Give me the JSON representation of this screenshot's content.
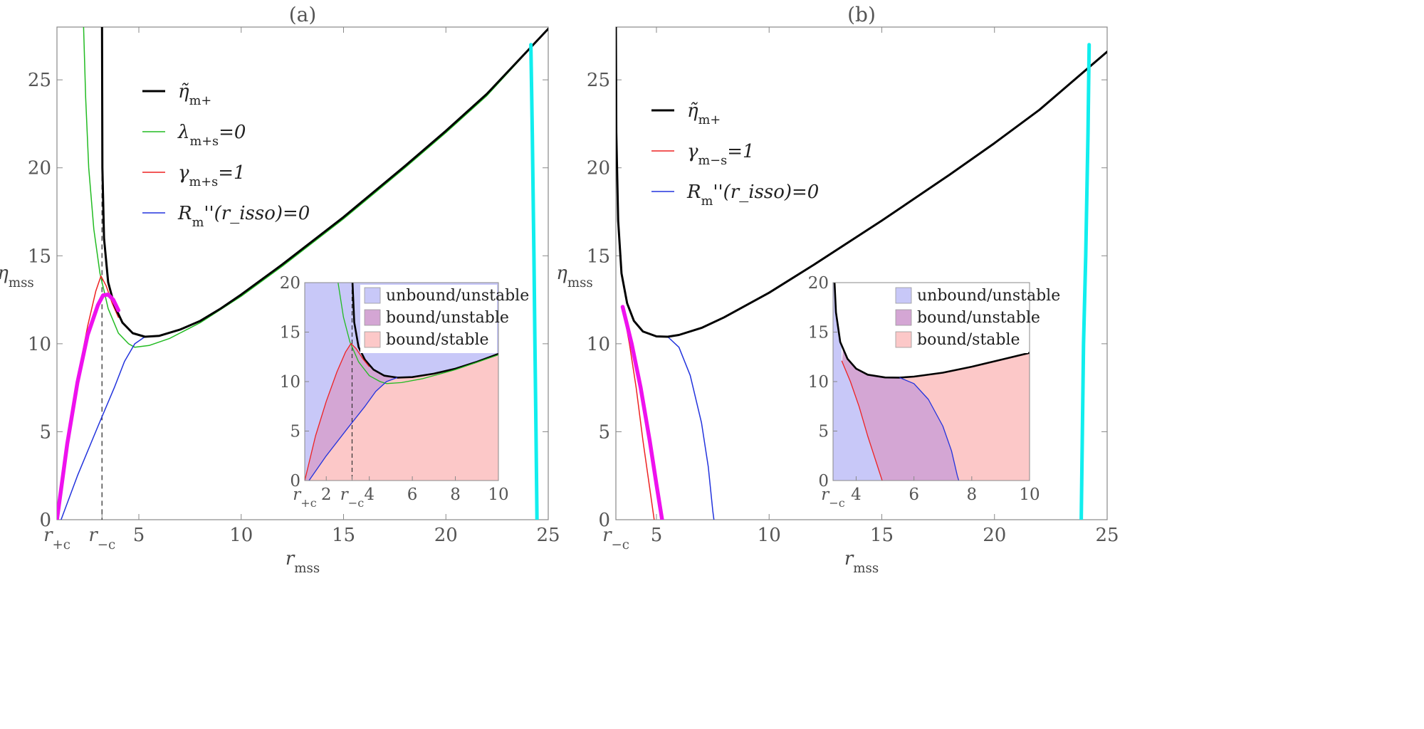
{
  "chart_data": [
    {
      "panel": "(a)",
      "type": "line",
      "title": "(a)",
      "xlabel": "r_mss",
      "ylabel": "η_mss",
      "xlim": [
        1.0,
        25.0
      ],
      "ylim": [
        0,
        28
      ],
      "xticks": [
        {
          "v": 1.0,
          "t": "r",
          "sub": "+c"
        },
        {
          "v": 3.2,
          "t": "r",
          "sub": "−c"
        },
        {
          "v": 5,
          "t": "5"
        },
        {
          "v": 10,
          "t": "10"
        },
        {
          "v": 15,
          "t": "15"
        },
        {
          "v": 20,
          "t": "20"
        },
        {
          "v": 25,
          "t": "25"
        }
      ],
      "yticks": [
        0,
        5,
        10,
        15,
        20,
        25
      ],
      "vline_x": 3.2,
      "legend": [
        {
          "key": "eta_tilde",
          "label": "η̃",
          "sub": "m+",
          "suffix": "",
          "color": "#000000"
        },
        {
          "key": "lambda",
          "label": "λ",
          "sub": "m+s",
          "suffix": "=0",
          "color": "#22bb22"
        },
        {
          "key": "gamma",
          "label": "γ",
          "sub": "m+s",
          "suffix": "=1",
          "color": "#ee2222"
        },
        {
          "key": "risso",
          "label": "R",
          "sub": "m",
          "suffix": "''(r_isso)=0",
          "color": "#2233dd"
        }
      ],
      "series": [
        {
          "name": "η̃_m+",
          "color": "#000000",
          "width": 3,
          "points": [
            [
              3.2,
              28
            ],
            [
              3.22,
              20
            ],
            [
              3.3,
              16
            ],
            [
              3.5,
              13.5
            ],
            [
              3.8,
              12.2
            ],
            [
              4.2,
              11.2
            ],
            [
              4.7,
              10.6
            ],
            [
              5.3,
              10.4
            ],
            [
              6,
              10.45
            ],
            [
              7,
              10.8
            ],
            [
              8,
              11.3
            ],
            [
              9,
              12
            ],
            [
              10,
              12.8
            ],
            [
              12,
              14.5
            ],
            [
              15,
              17.2
            ],
            [
              18,
              20.1
            ],
            [
              20,
              22.1
            ],
            [
              22,
              24.2
            ],
            [
              25,
              27.9
            ]
          ]
        },
        {
          "name": "λ_m+s=0",
          "color": "#22bb22",
          "width": 1.5,
          "points": [
            [
              2.3,
              28
            ],
            [
              2.4,
              24
            ],
            [
              2.55,
              20
            ],
            [
              2.8,
              16.5
            ],
            [
              3.1,
              14
            ],
            [
              3.5,
              12
            ],
            [
              4,
              10.6
            ],
            [
              4.5,
              10
            ],
            [
              4.8,
              9.8
            ],
            [
              5.5,
              9.9
            ],
            [
              6.5,
              10.3
            ],
            [
              8,
              11.2
            ],
            [
              10,
              12.7
            ],
            [
              12,
              14.4
            ],
            [
              15,
              17.1
            ],
            [
              18,
              20
            ],
            [
              20,
              22
            ],
            [
              22,
              24.1
            ],
            [
              25,
              27.9
            ]
          ]
        },
        {
          "name": "γ_m+s=1",
          "color": "#ee2222",
          "width": 1.5,
          "points": [
            [
              1.0,
              0
            ],
            [
              1.5,
              4.5
            ],
            [
              2,
              8
            ],
            [
              2.5,
              11
            ],
            [
              2.9,
              13
            ],
            [
              3.15,
              13.85
            ],
            [
              3.4,
              13.3
            ],
            [
              3.7,
              12.3
            ],
            [
              4,
              11.5
            ]
          ]
        },
        {
          "name": "R_m''(r_isso)=0",
          "color": "#2233dd",
          "width": 1.5,
          "points": [
            [
              1.2,
              0
            ],
            [
              2,
              2.5
            ],
            [
              3,
              5.3
            ],
            [
              3.8,
              7.5
            ],
            [
              4.3,
              9
            ],
            [
              4.8,
              10
            ],
            [
              5.3,
              10.4
            ]
          ]
        },
        {
          "name": "magenta",
          "color": "#ee11ee",
          "width": 5.5,
          "points": [
            [
              1.0,
              0
            ],
            [
              1.5,
              4.3
            ],
            [
              2,
              7.8
            ],
            [
              2.5,
              10.5
            ],
            [
              3,
              12.2
            ],
            [
              3.25,
              12.75
            ],
            [
              3.5,
              12.8
            ],
            [
              3.75,
              12.5
            ],
            [
              4,
              11.9
            ]
          ]
        },
        {
          "name": "cyan",
          "color": "#11eeee",
          "width": 5,
          "points": [
            [
              24.15,
              27
            ],
            [
              24.22,
              22
            ],
            [
              24.3,
              15
            ],
            [
              24.35,
              10
            ],
            [
              24.4,
              5
            ],
            [
              24.45,
              0
            ]
          ]
        }
      ],
      "inset": {
        "xlim": [
          1.0,
          10.0
        ],
        "ylim": [
          0,
          20
        ],
        "xticks": [
          {
            "v": 1.0,
            "t": "r",
            "sub": "+c"
          },
          {
            "v": 2,
            "t": "2"
          },
          {
            "v": 3.2,
            "t": "r",
            "sub": "−c"
          },
          {
            "v": 4,
            "t": "4"
          },
          {
            "v": 6,
            "t": "6"
          },
          {
            "v": 8,
            "t": "8"
          },
          {
            "v": 10,
            "t": "10"
          }
        ],
        "yticks": [
          0,
          5,
          10,
          15,
          20
        ],
        "vline_x": 3.2,
        "regions": [
          {
            "label": "unbound/unstable",
            "color": "#c8c8f8"
          },
          {
            "label": "bound/unstable",
            "color": "#d4a6d4"
          },
          {
            "label": "bound/stable",
            "color": "#fcc8c8"
          }
        ]
      }
    },
    {
      "panel": "(b)",
      "type": "line",
      "title": "(b)",
      "xlabel": "r_mss",
      "ylabel": "η_mss",
      "xlim": [
        3.2,
        25.0
      ],
      "ylim": [
        0,
        28
      ],
      "xticks": [
        {
          "v": 3.2,
          "t": "r",
          "sub": "−c"
        },
        {
          "v": 5,
          "t": "5"
        },
        {
          "v": 10,
          "t": "10"
        },
        {
          "v": 15,
          "t": "15"
        },
        {
          "v": 20,
          "t": "20"
        },
        {
          "v": 25,
          "t": "25"
        }
      ],
      "yticks": [
        0,
        5,
        10,
        15,
        20,
        25
      ],
      "legend": [
        {
          "key": "eta_tilde",
          "label": "η̃",
          "sub": "m+",
          "suffix": "",
          "color": "#000000"
        },
        {
          "key": "gamma",
          "label": "γ",
          "sub": "m−s",
          "suffix": "=1",
          "color": "#ee2222"
        },
        {
          "key": "risso",
          "label": "R",
          "sub": "m",
          "suffix": "''(r_isso)=0",
          "color": "#2233dd"
        }
      ],
      "series": [
        {
          "name": "η̃_m+",
          "color": "#000000",
          "width": 3,
          "points": [
            [
              3.2,
              28
            ],
            [
              3.22,
              22
            ],
            [
              3.3,
              17
            ],
            [
              3.45,
              14
            ],
            [
              3.7,
              12.3
            ],
            [
              4,
              11.3
            ],
            [
              4.4,
              10.7
            ],
            [
              5,
              10.42
            ],
            [
              5.5,
              10.4
            ],
            [
              6,
              10.5
            ],
            [
              7,
              10.9
            ],
            [
              8,
              11.5
            ],
            [
              10,
              12.9
            ],
            [
              12,
              14.5
            ],
            [
              15,
              17
            ],
            [
              18,
              19.6
            ],
            [
              20,
              21.4
            ],
            [
              22,
              23.3
            ],
            [
              25,
              26.6
            ]
          ]
        },
        {
          "name": "γ_m−s=1",
          "color": "#ee2222",
          "width": 1.5,
          "points": [
            [
              3.5,
              12.1
            ],
            [
              3.8,
              10
            ],
            [
              4.1,
              7.5
            ],
            [
              4.4,
              4.5
            ],
            [
              4.7,
              1.8
            ],
            [
              4.9,
              0
            ]
          ]
        },
        {
          "name": "R_m''(r_isso)=0",
          "color": "#2233dd",
          "width": 1.5,
          "points": [
            [
              5.5,
              10.4
            ],
            [
              6,
              9.8
            ],
            [
              6.5,
              8.2
            ],
            [
              7,
              5.5
            ],
            [
              7.3,
              3
            ],
            [
              7.5,
              0.5
            ],
            [
              7.55,
              0
            ]
          ]
        },
        {
          "name": "magenta",
          "color": "#ee11ee",
          "width": 5.5,
          "points": [
            [
              3.5,
              12.1
            ],
            [
              3.9,
              10
            ],
            [
              4.3,
              7.5
            ],
            [
              4.7,
              4.5
            ],
            [
              5,
              2
            ],
            [
              5.25,
              0
            ]
          ]
        },
        {
          "name": "cyan",
          "color": "#11eeee",
          "width": 5,
          "points": [
            [
              24.2,
              27
            ],
            [
              24.15,
              22
            ],
            [
              24.05,
              15
            ],
            [
              23.95,
              10
            ],
            [
              23.9,
              5
            ],
            [
              23.85,
              0
            ]
          ]
        }
      ],
      "inset": {
        "xlim": [
          3.2,
          10.0
        ],
        "ylim": [
          0,
          20
        ],
        "xticks": [
          {
            "v": 3.2,
            "t": "r",
            "sub": "−c"
          },
          {
            "v": 4,
            "t": "4"
          },
          {
            "v": 6,
            "t": "6"
          },
          {
            "v": 8,
            "t": "8"
          },
          {
            "v": 10,
            "t": "10"
          }
        ],
        "yticks": [
          0,
          5,
          10,
          15,
          20
        ],
        "regions": [
          {
            "label": "unbound/unstable",
            "color": "#c8c8f8"
          },
          {
            "label": "bound/unstable",
            "color": "#d4a6d4"
          },
          {
            "label": "bound/stable",
            "color": "#fcc8c8"
          }
        ]
      }
    }
  ]
}
